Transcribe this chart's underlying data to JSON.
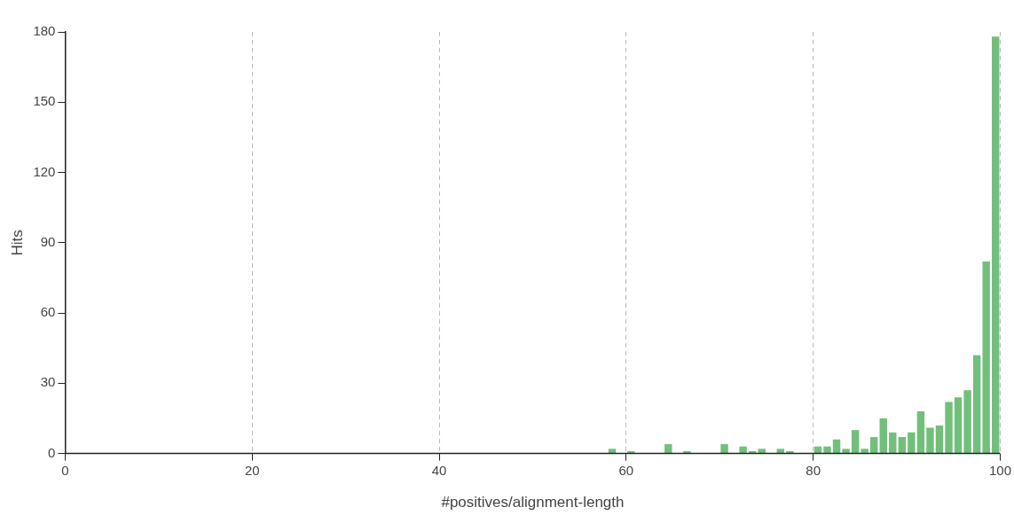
{
  "chart_data": {
    "type": "histogram",
    "xlabel": "#positives/alignment-length",
    "ylabel": "Hits",
    "bins": [
      0,
      1,
      2,
      3,
      4,
      5,
      6,
      7,
      8,
      9,
      10,
      11,
      12,
      13,
      14,
      15,
      16,
      17,
      18,
      19,
      20,
      21,
      22,
      23,
      24,
      25,
      26,
      27,
      28,
      29,
      30,
      31,
      32,
      33,
      34,
      35,
      36,
      37,
      38,
      39,
      40,
      41,
      42,
      43,
      44,
      45,
      46,
      47,
      48,
      49,
      50,
      51,
      52,
      53,
      54,
      55,
      56,
      57,
      58,
      59,
      60,
      61,
      62,
      63,
      64,
      65,
      66,
      67,
      68,
      69,
      70,
      71,
      72,
      73,
      74,
      75,
      76,
      77,
      78,
      79,
      80,
      81,
      82,
      83,
      84,
      85,
      86,
      87,
      88,
      89,
      90,
      91,
      92,
      93,
      94,
      95,
      96,
      97,
      98,
      99,
      100
    ],
    "values": [
      0,
      0,
      0,
      0,
      0,
      0,
      0,
      0,
      0,
      0,
      0,
      0,
      0,
      0,
      0,
      0,
      0,
      0,
      0,
      0,
      0,
      0,
      0,
      0,
      0,
      0,
      0,
      0,
      0,
      0,
      0,
      0,
      0,
      0,
      0,
      0,
      0,
      0,
      0,
      0,
      0,
      0,
      0,
      0,
      0,
      0,
      0,
      0,
      0,
      0,
      0,
      0,
      0,
      0,
      0,
      0,
      0,
      0,
      2,
      0,
      1,
      0,
      0,
      0,
      4,
      0,
      1,
      0,
      0,
      0,
      4,
      0,
      3,
      1,
      2,
      0,
      2,
      1,
      0,
      0,
      3,
      3,
      6,
      2,
      10,
      2,
      7,
      15,
      9,
      7,
      9,
      18,
      11,
      12,
      22,
      24,
      27,
      42,
      82,
      178
    ],
    "color": "#72bf7c",
    "xlim": [
      0,
      100
    ],
    "xticks": [
      0,
      20,
      40,
      60,
      80,
      100
    ],
    "ylim": [
      0,
      180
    ],
    "yticks": [
      0,
      30,
      60,
      90,
      120,
      150,
      180
    ],
    "grid": "x"
  }
}
